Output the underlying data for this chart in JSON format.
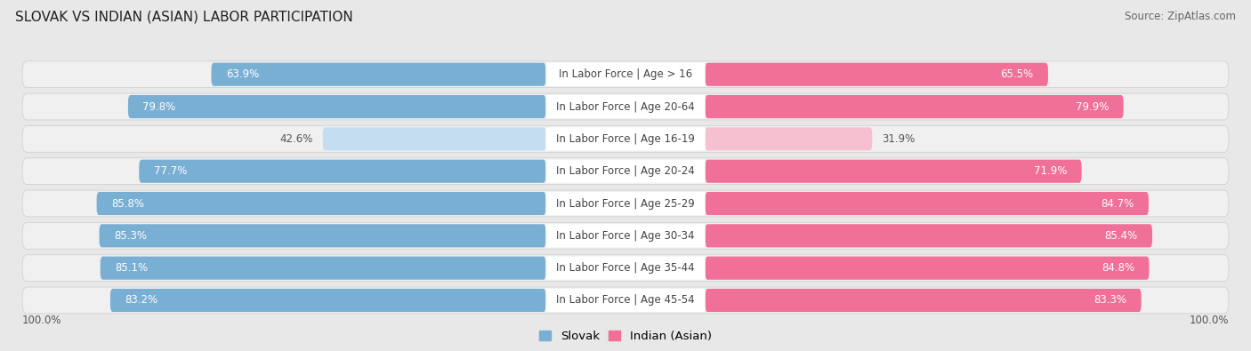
{
  "title": "SLOVAK VS INDIAN (ASIAN) LABOR PARTICIPATION",
  "source": "Source: ZipAtlas.com",
  "categories": [
    "In Labor Force | Age > 16",
    "In Labor Force | Age 20-64",
    "In Labor Force | Age 16-19",
    "In Labor Force | Age 20-24",
    "In Labor Force | Age 25-29",
    "In Labor Force | Age 30-34",
    "In Labor Force | Age 35-44",
    "In Labor Force | Age 45-54"
  ],
  "slovak_values": [
    63.9,
    79.8,
    42.6,
    77.7,
    85.8,
    85.3,
    85.1,
    83.2
  ],
  "indian_values": [
    65.5,
    79.9,
    31.9,
    71.9,
    84.7,
    85.4,
    84.8,
    83.3
  ],
  "slovak_color": "#7aafd4",
  "slovak_color_light": "#c5ddf0",
  "indian_color": "#f07098",
  "indian_color_light": "#f7c0d0",
  "bg_color": "#e8e8e8",
  "row_bg_color": "#f0f0f0",
  "title_fontsize": 11,
  "source_fontsize": 8.5,
  "bar_fontsize": 8.5,
  "legend_fontsize": 9.5,
  "axis_fontsize": 8.5,
  "max_value": 100.0,
  "legend_labels": [
    "Slovak",
    "Indian (Asian)"
  ],
  "center_box_color": "#ffffff",
  "center_label_color": "#444444",
  "value_label_dark": "#555555",
  "value_label_light": "#ffffff"
}
